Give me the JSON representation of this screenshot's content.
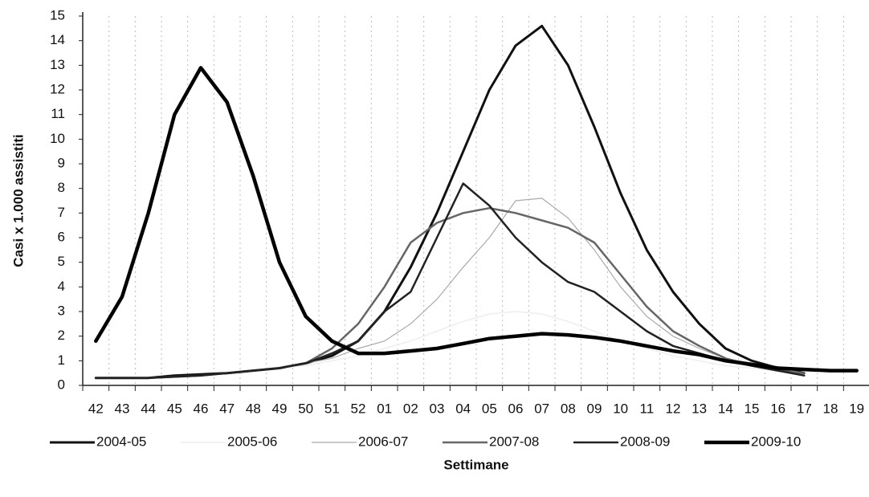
{
  "chart_data": {
    "type": "line",
    "x_label": "Settimane",
    "y_label": "Casi x 1.000 assistiti",
    "categories": [
      "42",
      "43",
      "44",
      "45",
      "46",
      "47",
      "48",
      "49",
      "50",
      "51",
      "52",
      "01",
      "02",
      "03",
      "04",
      "05",
      "06",
      "07",
      "08",
      "09",
      "10",
      "11",
      "12",
      "13",
      "14",
      "15",
      "16",
      "17",
      "18",
      "19"
    ],
    "ylim": [
      0,
      15
    ],
    "yticks": [
      0,
      1,
      2,
      3,
      4,
      5,
      6,
      7,
      8,
      9,
      10,
      11,
      12,
      13,
      14,
      15
    ],
    "grid": true,
    "legend": "bottom",
    "series": [
      {
        "name": "2004-05",
        "color": "#111111",
        "values": [
          0.3,
          0.3,
          0.3,
          0.4,
          0.45,
          0.5,
          0.6,
          0.7,
          0.9,
          1.2,
          1.8,
          3,
          4.8,
          7,
          9.5,
          12,
          13.8,
          14.6,
          13,
          10.5,
          7.8,
          5.5,
          3.8,
          2.5,
          1.5,
          1.0,
          0.7,
          0.5,
          null,
          null
        ]
      },
      {
        "name": "2005-06",
        "color": "#eeeeee",
        "values": [
          0.3,
          0.3,
          0.3,
          0.35,
          0.4,
          0.5,
          0.6,
          0.7,
          0.8,
          1.0,
          1.2,
          1.5,
          1.8,
          2.2,
          2.6,
          2.9,
          3.0,
          2.9,
          2.6,
          2.2,
          1.8,
          1.5,
          1.2,
          1.0,
          0.8,
          0.7,
          0.6,
          0.5,
          null,
          null
        ]
      },
      {
        "name": "2006-07",
        "color": "#aaaaaa",
        "values": [
          0.3,
          0.3,
          0.3,
          0.35,
          0.4,
          0.5,
          0.6,
          0.7,
          0.9,
          1.1,
          1.5,
          1.8,
          2.5,
          3.5,
          4.8,
          6,
          7.5,
          7.6,
          6.8,
          5.5,
          4,
          2.8,
          2,
          1.5,
          1.1,
          0.9,
          0.7,
          0.5,
          null,
          null
        ]
      },
      {
        "name": "2007-08",
        "color": "#666666",
        "values": [
          0.3,
          0.3,
          0.3,
          0.35,
          0.4,
          0.5,
          0.6,
          0.7,
          0.9,
          1.5,
          2.5,
          4,
          5.8,
          6.6,
          7.0,
          7.2,
          7.0,
          6.7,
          6.4,
          5.8,
          4.5,
          3.2,
          2.2,
          1.6,
          1.1,
          0.8,
          0.6,
          0.5,
          null,
          null
        ]
      },
      {
        "name": "2008-09",
        "color": "#222222",
        "values": [
          0.3,
          0.3,
          0.3,
          0.35,
          0.4,
          0.5,
          0.6,
          0.7,
          0.9,
          1.3,
          1.8,
          3,
          3.8,
          6,
          8.2,
          7.3,
          6,
          5,
          4.2,
          3.8,
          3,
          2.2,
          1.6,
          1.3,
          1,
          0.8,
          0.6,
          0.4,
          null,
          null
        ]
      },
      {
        "name": "2009-10",
        "color": "#000000",
        "values": [
          1.8,
          3.6,
          7,
          11,
          12.9,
          11.5,
          8.5,
          5,
          2.8,
          1.8,
          1.3,
          1.3,
          1.4,
          1.5,
          1.7,
          1.9,
          2.0,
          2.1,
          2.05,
          1.95,
          1.8,
          1.6,
          1.4,
          1.25,
          1.0,
          0.85,
          0.7,
          0.65,
          0.6,
          0.6
        ]
      }
    ]
  }
}
